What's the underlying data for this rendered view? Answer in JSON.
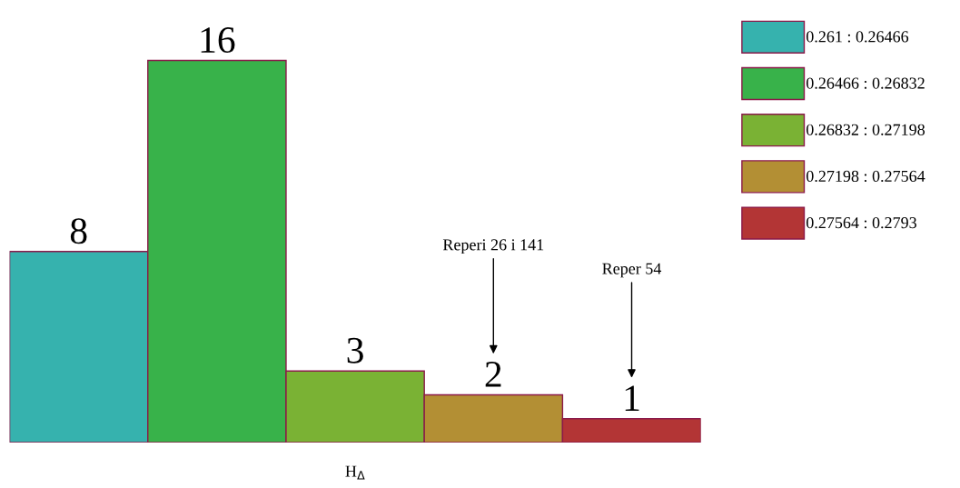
{
  "chart_data": {
    "type": "bar",
    "xlabel": "H$_{Δ}$",
    "stacked": true,
    "categories": [
      null,
      null,
      null,
      null,
      null
    ],
    "series": [
      {
        "name": "0.261 : 0.26466",
        "color": "#36b2ae",
        "values": [
          8,
          null,
          null,
          null,
          null
        ]
      },
      {
        "name": "0.26466 : 0.26832",
        "color": "#38b24a",
        "values": [
          null,
          16,
          null,
          null,
          null
        ]
      },
      {
        "name": "0.26832 : 0.27198",
        "color": "#7ab234",
        "values": [
          null,
          null,
          3,
          null,
          null
        ]
      },
      {
        "name": "0.27198 : 0.27564",
        "color": "#b38f34",
        "values": [
          null,
          null,
          null,
          2,
          null
        ]
      },
      {
        "name": "0.27564 : 0.2793",
        "color": "#b33535",
        "values": [
          null,
          null,
          null,
          null,
          1
        ]
      }
    ],
    "data_labels": true,
    "legend": "right",
    "grid": false,
    "tick_labels": false,
    "annotations": [
      "Reperi 26 i 141",
      "Reper 54"
    ]
  }
}
